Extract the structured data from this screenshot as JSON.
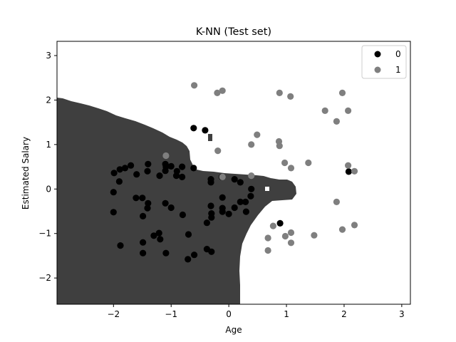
{
  "chart_data": {
    "type": "scatter",
    "title": "K-NN (Test set)",
    "xlabel": "Age",
    "ylabel": "Estimated Salary",
    "xlim": [
      -2.98,
      3.15
    ],
    "ylim": [
      -2.59,
      3.32
    ],
    "xticks": [
      -2,
      -1,
      0,
      1,
      2,
      3
    ],
    "yticks": [
      -2,
      -1,
      0,
      1,
      2,
      3
    ],
    "xtick_labels": [
      "−2",
      "−1",
      "0",
      "1",
      "2",
      "3"
    ],
    "ytick_labels": [
      "−2",
      "−1",
      "0",
      "1",
      "2",
      "3"
    ],
    "grid": false,
    "legend_position": "top-right",
    "regions": [
      {
        "label": "0",
        "color": "#3f3f3f"
      },
      {
        "label": "1",
        "color": "#ffffff"
      }
    ],
    "series": [
      {
        "name": "0",
        "color": "#000000",
        "points": [
          [
            -1.99,
            0.36
          ],
          [
            -1.89,
            0.44
          ],
          [
            -1.8,
            0.47
          ],
          [
            -1.7,
            0.53
          ],
          [
            -1.9,
            0.17
          ],
          [
            -2.0,
            -0.07
          ],
          [
            -2.0,
            -0.52
          ],
          [
            -1.88,
            -1.27
          ],
          [
            -1.6,
            0.33
          ],
          [
            -1.4,
            0.56
          ],
          [
            -1.41,
            0.4
          ],
          [
            -1.61,
            -0.2
          ],
          [
            -1.5,
            -0.2
          ],
          [
            -1.4,
            -0.32
          ],
          [
            -1.41,
            -0.43
          ],
          [
            -1.49,
            -0.61
          ],
          [
            -1.3,
            -1.05
          ],
          [
            -1.21,
            -0.99
          ],
          [
            -1.19,
            -1.13
          ],
          [
            -1.49,
            -1.2
          ],
          [
            -1.49,
            -1.44
          ],
          [
            -1.09,
            -1.44
          ],
          [
            -1.2,
            0.3
          ],
          [
            -1.1,
            0.56
          ],
          [
            -1.09,
            0.5
          ],
          [
            -1.1,
            0.41
          ],
          [
            -1.0,
            0.51
          ],
          [
            -0.9,
            0.4
          ],
          [
            -0.91,
            0.3
          ],
          [
            -0.81,
            0.5
          ],
          [
            -0.81,
            0.27
          ],
          [
            -0.61,
            0.47
          ],
          [
            -1.1,
            -0.32
          ],
          [
            -1.0,
            -0.42
          ],
          [
            -0.8,
            -0.58
          ],
          [
            -0.7,
            -1.02
          ],
          [
            -0.6,
            -1.48
          ],
          [
            -0.71,
            -1.58
          ],
          [
            -0.38,
            -1.35
          ],
          [
            -0.3,
            -1.41
          ],
          [
            -0.38,
            -0.76
          ],
          [
            -0.3,
            -0.55
          ],
          [
            -0.31,
            -0.38
          ],
          [
            -0.3,
            -0.64
          ],
          [
            -0.31,
            0.15
          ],
          [
            -0.31,
            0.22
          ],
          [
            -0.12,
            0.27
          ],
          [
            -0.11,
            -0.19
          ],
          [
            -0.11,
            -0.43
          ],
          [
            -0.11,
            -0.51
          ],
          [
            0.0,
            -0.56
          ],
          [
            0.1,
            -0.42
          ],
          [
            0.1,
            0.22
          ],
          [
            0.2,
            0.15
          ],
          [
            0.2,
            -0.29
          ],
          [
            0.29,
            -0.29
          ],
          [
            0.3,
            -0.51
          ],
          [
            0.38,
            -0.16
          ],
          [
            0.39,
            0.0
          ],
          [
            0.89,
            -0.77
          ],
          [
            -0.61,
            1.37
          ],
          [
            -0.41,
            1.32
          ],
          [
            2.08,
            0.39
          ]
        ]
      },
      {
        "name": "1",
        "color": "#7f7f7f",
        "points": [
          [
            -0.6,
            2.33
          ],
          [
            -0.2,
            2.16
          ],
          [
            -0.11,
            2.21
          ],
          [
            0.88,
            2.16
          ],
          [
            1.07,
            2.08
          ],
          [
            1.97,
            2.16
          ],
          [
            1.67,
            1.76
          ],
          [
            1.87,
            1.52
          ],
          [
            2.07,
            1.76
          ],
          [
            0.49,
            1.22
          ],
          [
            0.39,
            1.0
          ],
          [
            0.87,
            1.07
          ],
          [
            0.88,
            0.97
          ],
          [
            -0.19,
            0.86
          ],
          [
            -1.09,
            0.75
          ],
          [
            0.97,
            0.59
          ],
          [
            1.38,
            0.59
          ],
          [
            1.08,
            0.47
          ],
          [
            2.07,
            0.53
          ],
          [
            2.18,
            0.4
          ],
          [
            -0.11,
            0.27
          ],
          [
            0.39,
            0.3
          ],
          [
            1.87,
            -0.29
          ],
          [
            0.77,
            -0.83
          ],
          [
            0.68,
            -1.1
          ],
          [
            0.68,
            -1.38
          ],
          [
            0.98,
            -1.06
          ],
          [
            1.08,
            -0.98
          ],
          [
            1.08,
            -1.21
          ],
          [
            1.48,
            -1.04
          ],
          [
            1.97,
            -0.91
          ],
          [
            2.18,
            -0.81
          ]
        ]
      }
    ]
  },
  "legend": {
    "label_0": "0",
    "label_1": "1"
  }
}
